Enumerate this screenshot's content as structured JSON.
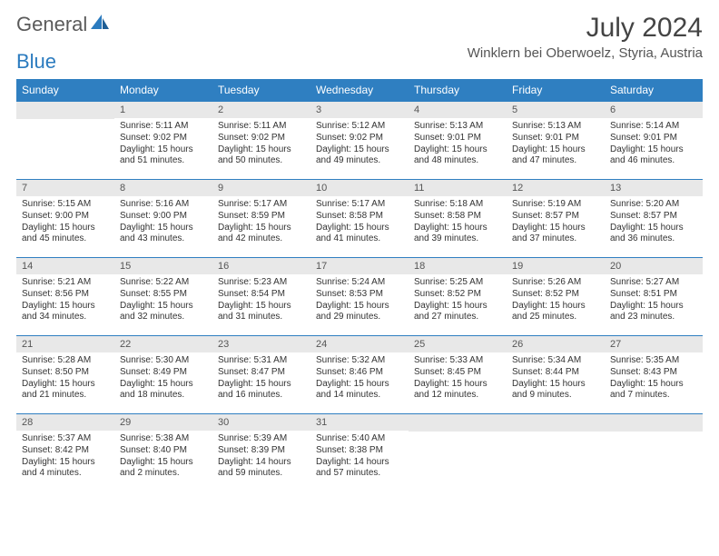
{
  "logo": {
    "word1": "General",
    "word2": "Blue"
  },
  "title": "July 2024",
  "subtitle": "Winklern bei Oberwoelz, Styria, Austria",
  "colors": {
    "header_bg": "#2f7fc1",
    "header_text": "#ffffff",
    "daynum_bg": "#e8e8e8",
    "cell_border": "#2f7fc1",
    "logo_gray": "#5a5a5a",
    "logo_blue": "#2b7bbf"
  },
  "weekdays": [
    "Sunday",
    "Monday",
    "Tuesday",
    "Wednesday",
    "Thursday",
    "Friday",
    "Saturday"
  ],
  "weeks": [
    [
      {
        "n": "",
        "l1": "",
        "l2": "",
        "l3": "",
        "l4": ""
      },
      {
        "n": "1",
        "l1": "Sunrise: 5:11 AM",
        "l2": "Sunset: 9:02 PM",
        "l3": "Daylight: 15 hours",
        "l4": "and 51 minutes."
      },
      {
        "n": "2",
        "l1": "Sunrise: 5:11 AM",
        "l2": "Sunset: 9:02 PM",
        "l3": "Daylight: 15 hours",
        "l4": "and 50 minutes."
      },
      {
        "n": "3",
        "l1": "Sunrise: 5:12 AM",
        "l2": "Sunset: 9:02 PM",
        "l3": "Daylight: 15 hours",
        "l4": "and 49 minutes."
      },
      {
        "n": "4",
        "l1": "Sunrise: 5:13 AM",
        "l2": "Sunset: 9:01 PM",
        "l3": "Daylight: 15 hours",
        "l4": "and 48 minutes."
      },
      {
        "n": "5",
        "l1": "Sunrise: 5:13 AM",
        "l2": "Sunset: 9:01 PM",
        "l3": "Daylight: 15 hours",
        "l4": "and 47 minutes."
      },
      {
        "n": "6",
        "l1": "Sunrise: 5:14 AM",
        "l2": "Sunset: 9:01 PM",
        "l3": "Daylight: 15 hours",
        "l4": "and 46 minutes."
      }
    ],
    [
      {
        "n": "7",
        "l1": "Sunrise: 5:15 AM",
        "l2": "Sunset: 9:00 PM",
        "l3": "Daylight: 15 hours",
        "l4": "and 45 minutes."
      },
      {
        "n": "8",
        "l1": "Sunrise: 5:16 AM",
        "l2": "Sunset: 9:00 PM",
        "l3": "Daylight: 15 hours",
        "l4": "and 43 minutes."
      },
      {
        "n": "9",
        "l1": "Sunrise: 5:17 AM",
        "l2": "Sunset: 8:59 PM",
        "l3": "Daylight: 15 hours",
        "l4": "and 42 minutes."
      },
      {
        "n": "10",
        "l1": "Sunrise: 5:17 AM",
        "l2": "Sunset: 8:58 PM",
        "l3": "Daylight: 15 hours",
        "l4": "and 41 minutes."
      },
      {
        "n": "11",
        "l1": "Sunrise: 5:18 AM",
        "l2": "Sunset: 8:58 PM",
        "l3": "Daylight: 15 hours",
        "l4": "and 39 minutes."
      },
      {
        "n": "12",
        "l1": "Sunrise: 5:19 AM",
        "l2": "Sunset: 8:57 PM",
        "l3": "Daylight: 15 hours",
        "l4": "and 37 minutes."
      },
      {
        "n": "13",
        "l1": "Sunrise: 5:20 AM",
        "l2": "Sunset: 8:57 PM",
        "l3": "Daylight: 15 hours",
        "l4": "and 36 minutes."
      }
    ],
    [
      {
        "n": "14",
        "l1": "Sunrise: 5:21 AM",
        "l2": "Sunset: 8:56 PM",
        "l3": "Daylight: 15 hours",
        "l4": "and 34 minutes."
      },
      {
        "n": "15",
        "l1": "Sunrise: 5:22 AM",
        "l2": "Sunset: 8:55 PM",
        "l3": "Daylight: 15 hours",
        "l4": "and 32 minutes."
      },
      {
        "n": "16",
        "l1": "Sunrise: 5:23 AM",
        "l2": "Sunset: 8:54 PM",
        "l3": "Daylight: 15 hours",
        "l4": "and 31 minutes."
      },
      {
        "n": "17",
        "l1": "Sunrise: 5:24 AM",
        "l2": "Sunset: 8:53 PM",
        "l3": "Daylight: 15 hours",
        "l4": "and 29 minutes."
      },
      {
        "n": "18",
        "l1": "Sunrise: 5:25 AM",
        "l2": "Sunset: 8:52 PM",
        "l3": "Daylight: 15 hours",
        "l4": "and 27 minutes."
      },
      {
        "n": "19",
        "l1": "Sunrise: 5:26 AM",
        "l2": "Sunset: 8:52 PM",
        "l3": "Daylight: 15 hours",
        "l4": "and 25 minutes."
      },
      {
        "n": "20",
        "l1": "Sunrise: 5:27 AM",
        "l2": "Sunset: 8:51 PM",
        "l3": "Daylight: 15 hours",
        "l4": "and 23 minutes."
      }
    ],
    [
      {
        "n": "21",
        "l1": "Sunrise: 5:28 AM",
        "l2": "Sunset: 8:50 PM",
        "l3": "Daylight: 15 hours",
        "l4": "and 21 minutes."
      },
      {
        "n": "22",
        "l1": "Sunrise: 5:30 AM",
        "l2": "Sunset: 8:49 PM",
        "l3": "Daylight: 15 hours",
        "l4": "and 18 minutes."
      },
      {
        "n": "23",
        "l1": "Sunrise: 5:31 AM",
        "l2": "Sunset: 8:47 PM",
        "l3": "Daylight: 15 hours",
        "l4": "and 16 minutes."
      },
      {
        "n": "24",
        "l1": "Sunrise: 5:32 AM",
        "l2": "Sunset: 8:46 PM",
        "l3": "Daylight: 15 hours",
        "l4": "and 14 minutes."
      },
      {
        "n": "25",
        "l1": "Sunrise: 5:33 AM",
        "l2": "Sunset: 8:45 PM",
        "l3": "Daylight: 15 hours",
        "l4": "and 12 minutes."
      },
      {
        "n": "26",
        "l1": "Sunrise: 5:34 AM",
        "l2": "Sunset: 8:44 PM",
        "l3": "Daylight: 15 hours",
        "l4": "and 9 minutes."
      },
      {
        "n": "27",
        "l1": "Sunrise: 5:35 AM",
        "l2": "Sunset: 8:43 PM",
        "l3": "Daylight: 15 hours",
        "l4": "and 7 minutes."
      }
    ],
    [
      {
        "n": "28",
        "l1": "Sunrise: 5:37 AM",
        "l2": "Sunset: 8:42 PM",
        "l3": "Daylight: 15 hours",
        "l4": "and 4 minutes."
      },
      {
        "n": "29",
        "l1": "Sunrise: 5:38 AM",
        "l2": "Sunset: 8:40 PM",
        "l3": "Daylight: 15 hours",
        "l4": "and 2 minutes."
      },
      {
        "n": "30",
        "l1": "Sunrise: 5:39 AM",
        "l2": "Sunset: 8:39 PM",
        "l3": "Daylight: 14 hours",
        "l4": "and 59 minutes."
      },
      {
        "n": "31",
        "l1": "Sunrise: 5:40 AM",
        "l2": "Sunset: 8:38 PM",
        "l3": "Daylight: 14 hours",
        "l4": "and 57 minutes."
      },
      {
        "n": "",
        "l1": "",
        "l2": "",
        "l3": "",
        "l4": ""
      },
      {
        "n": "",
        "l1": "",
        "l2": "",
        "l3": "",
        "l4": ""
      },
      {
        "n": "",
        "l1": "",
        "l2": "",
        "l3": "",
        "l4": ""
      }
    ]
  ]
}
